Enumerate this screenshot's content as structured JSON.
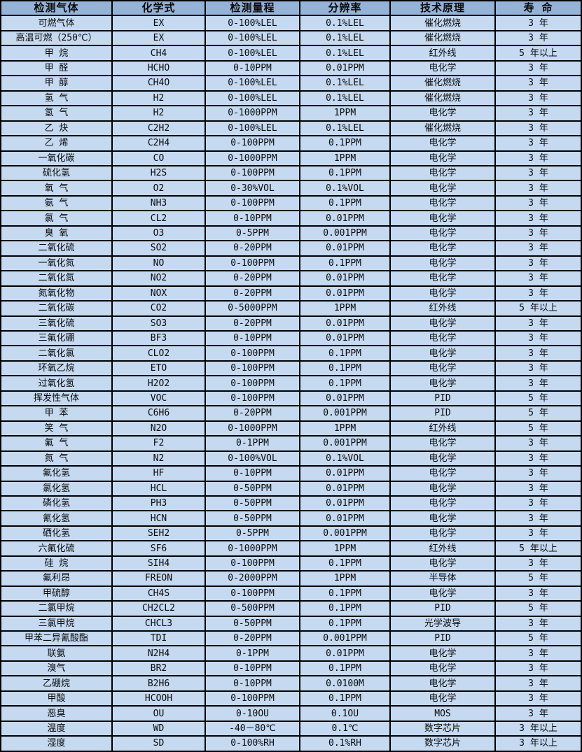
{
  "colors": {
    "header_bg": "#95B3D7",
    "row_bg": "#C5D9F1",
    "border": "#000000",
    "text": "#0A0A0A"
  },
  "table": {
    "columns": [
      {
        "label": "检测气体"
      },
      {
        "label": "化学式"
      },
      {
        "label": "检测量程"
      },
      {
        "label": "分辨率"
      },
      {
        "label": "技术原理"
      },
      {
        "label": "寿 命"
      }
    ],
    "rows": [
      [
        "可燃气体",
        "EX",
        "0-100%LEL",
        "0.1%LEL",
        "催化燃烧",
        "3 年"
      ],
      [
        "高温可燃（250℃）",
        "EX",
        "0-100%LEL",
        "0.1%LEL",
        "催化燃烧",
        "3 年"
      ],
      [
        "甲 烷",
        "CH4",
        "0-100%LEL",
        "0.1%LEL",
        "红外线",
        "5 年以上"
      ],
      [
        "甲 醛",
        "HCHO",
        "0-10PPM",
        "0.01PPM",
        "电化学",
        "3 年"
      ],
      [
        "甲 醇",
        "CH4O",
        "0-100%LEL",
        "0.1%LEL",
        "催化燃烧",
        "3 年"
      ],
      [
        "氢 气",
        "H2",
        "0-100%LEL",
        "0.1%LEL",
        "催化燃烧",
        "3 年"
      ],
      [
        "氢 气",
        "H2",
        "0-1000PPM",
        "1PPM",
        "电化学",
        "3 年"
      ],
      [
        "乙 炔",
        "C2H2",
        "0-100%LEL",
        "0.1%LEL",
        "催化燃烧",
        "3 年"
      ],
      [
        "乙 烯",
        "C2H4",
        "0-100PPM",
        "0.1PPM",
        "电化学",
        "3 年"
      ],
      [
        "一氧化碳",
        "CO",
        "0-1000PPM",
        "1PPM",
        "电化学",
        "3 年"
      ],
      [
        "硫化氢",
        "H2S",
        "0-100PPM",
        "0.1PPM",
        "电化学",
        "3 年"
      ],
      [
        "氧 气",
        "O2",
        "0-30%VOL",
        "0.1%VOL",
        "电化学",
        "3 年"
      ],
      [
        "氨 气",
        "NH3",
        "0-100PPM",
        "0.1PPM",
        "电化学",
        "3 年"
      ],
      [
        "氯 气",
        "CL2",
        "0-10PPM",
        "0.01PPM",
        "电化学",
        "3 年"
      ],
      [
        "臭 氧",
        "O3",
        "0-5PPM",
        "0.001PPM",
        "电化学",
        "3 年"
      ],
      [
        "二氧化硫",
        "SO2",
        "0-20PPM",
        "0.01PPM",
        "电化学",
        "3 年"
      ],
      [
        "一氧化氮",
        "NO",
        "0-100PPM",
        "0.1PPM",
        "电化学",
        "3 年"
      ],
      [
        "二氧化氮",
        "NO2",
        "0-20PPM",
        "0.01PPM",
        "电化学",
        "3 年"
      ],
      [
        "氮氧化物",
        "NOX",
        "0-20PPM",
        "0.01PPM",
        "电化学",
        "3 年"
      ],
      [
        "二氧化碳",
        "CO2",
        "0-5000PPM",
        "1PPM",
        "红外线",
        "5 年以上"
      ],
      [
        "三氧化硫",
        "SO3",
        "0-20PPM",
        "0.01PPM",
        "电化学",
        "3 年"
      ],
      [
        "三氟化硼",
        "BF3",
        "0-10PPM",
        "0.01PPM",
        "电化学",
        "3 年"
      ],
      [
        "二氧化氯",
        "CLO2",
        "0-100PPM",
        "0.1PPM",
        "电化学",
        "3 年"
      ],
      [
        "环氧乙烷",
        "ETO",
        "0-100PPM",
        "0.1PPM",
        "电化学",
        "3 年"
      ],
      [
        "过氧化氢",
        "H2O2",
        "0-100PPM",
        "0.1PPM",
        "电化学",
        "3 年"
      ],
      [
        "挥发性气体",
        "VOC",
        "0-100PPM",
        "0.01PPM",
        "PID",
        "5 年"
      ],
      [
        "甲 苯",
        "C6H6",
        "0-20PPM",
        "0.001PPM",
        "PID",
        "5 年"
      ],
      [
        "笑 气",
        "N2O",
        "0-1000PPM",
        "1PPM",
        "红外线",
        "5 年"
      ],
      [
        "氟 气",
        "F2",
        "0-1PPM",
        "0.001PPM",
        "电化学",
        "3 年"
      ],
      [
        "氮 气",
        "N2",
        "0-100%VOL",
        "0.1%VOL",
        "电化学",
        "3 年"
      ],
      [
        "氟化氢",
        "HF",
        "0-10PPM",
        "0.01PPM",
        "电化学",
        "3 年"
      ],
      [
        "氯化氢",
        "HCL",
        "0-50PPM",
        "0.01PPM",
        "电化学",
        "3 年"
      ],
      [
        "磷化氢",
        "PH3",
        "0-50PPM",
        "0.01PPM",
        "电化学",
        "3 年"
      ],
      [
        "氰化氢",
        "HCN",
        "0-50PPM",
        "0.01PPM",
        "电化学",
        "3 年"
      ],
      [
        "硒化氢",
        "SEH2",
        "0-5PPM",
        "0.001PPM",
        "电化学",
        "3 年"
      ],
      [
        "六氟化硫",
        "SF6",
        "0-1000PPM",
        "1PPM",
        "红外线",
        "5 年以上"
      ],
      [
        "硅 烷",
        "SIH4",
        "0-100PPM",
        "0.1PPM",
        "电化学",
        "3 年"
      ],
      [
        "氟利昂",
        "FREON",
        "0-2000PPM",
        "1PPM",
        "半导体",
        "5 年"
      ],
      [
        "甲硫醇",
        "CH4S",
        "0-100PPM",
        "0.1PPM",
        "电化学",
        "3 年"
      ],
      [
        "二氯甲烷",
        "CH2CL2",
        "0-500PPM",
        "0.1PPM",
        "PID",
        "5 年"
      ],
      [
        "三氯甲烷",
        "CHCL3",
        "0-50PPM",
        "0.1PPM",
        "光学波导",
        "3 年"
      ],
      [
        "甲苯二异氰酸酯",
        "TDI",
        "0-20PPM",
        "0.001PPM",
        "PID",
        "5 年"
      ],
      [
        "联氨",
        "N2H4",
        "0-1PPM",
        "0.01PPM",
        "电化学",
        "3 年"
      ],
      [
        "溴气",
        "BR2",
        "0-10PPM",
        "0.1PPM",
        "电化学",
        "3 年"
      ],
      [
        "乙硼烷",
        "B2H6",
        "0-10PPM",
        "0.0100M",
        "电化学",
        "3 年"
      ],
      [
        "甲酸",
        "HCOOH",
        "0-100PPM",
        "0.1PPM",
        "电化学",
        "3 年"
      ],
      [
        "恶臭",
        "OU",
        "0-10OU",
        "0.1OU",
        "MOS",
        "3 年"
      ],
      [
        "温度",
        "WD",
        "-40－80℃",
        "0.1℃",
        "数字芯片",
        "3 年以上"
      ],
      [
        "湿度",
        "SD",
        "0-100%RH",
        "0.1%RH",
        "数字芯片",
        "3 年以上"
      ]
    ]
  }
}
